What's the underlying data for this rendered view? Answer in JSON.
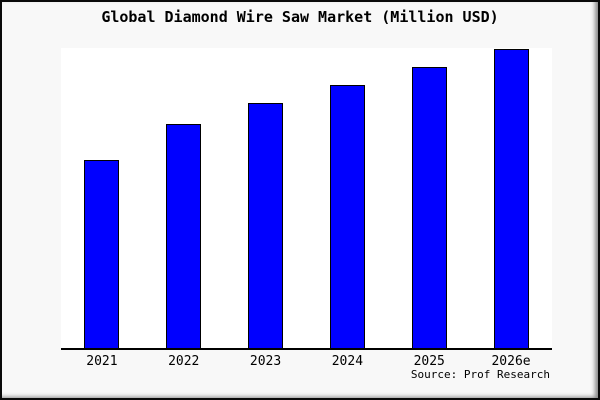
{
  "title": "Global Diamond Wire Saw Market (Million USD)",
  "source": "Source: Prof Research",
  "colors": {
    "bar_fill": "#0000ff",
    "bar_border": "#000000",
    "background": "#f8f8f8",
    "plot_background": "#ffffff",
    "axis_line": "#000000",
    "text": "#000000"
  },
  "chart_data": {
    "type": "bar",
    "title": "Global Diamond Wire Saw Market (Million USD)",
    "categories": [
      "2021",
      "2022",
      "2023",
      "2024",
      "2025",
      "2026e"
    ],
    "values": [
      63,
      75,
      82,
      88,
      94,
      100
    ],
    "xlabel": "",
    "ylabel": "",
    "ylim": [
      0,
      100
    ],
    "grid": false,
    "legend": "none",
    "y_axis_ticks_visible": false,
    "note": "Chart shows no numeric y-axis; values are relative bar heights scaled so the tallest bar (2026e) = 100."
  }
}
